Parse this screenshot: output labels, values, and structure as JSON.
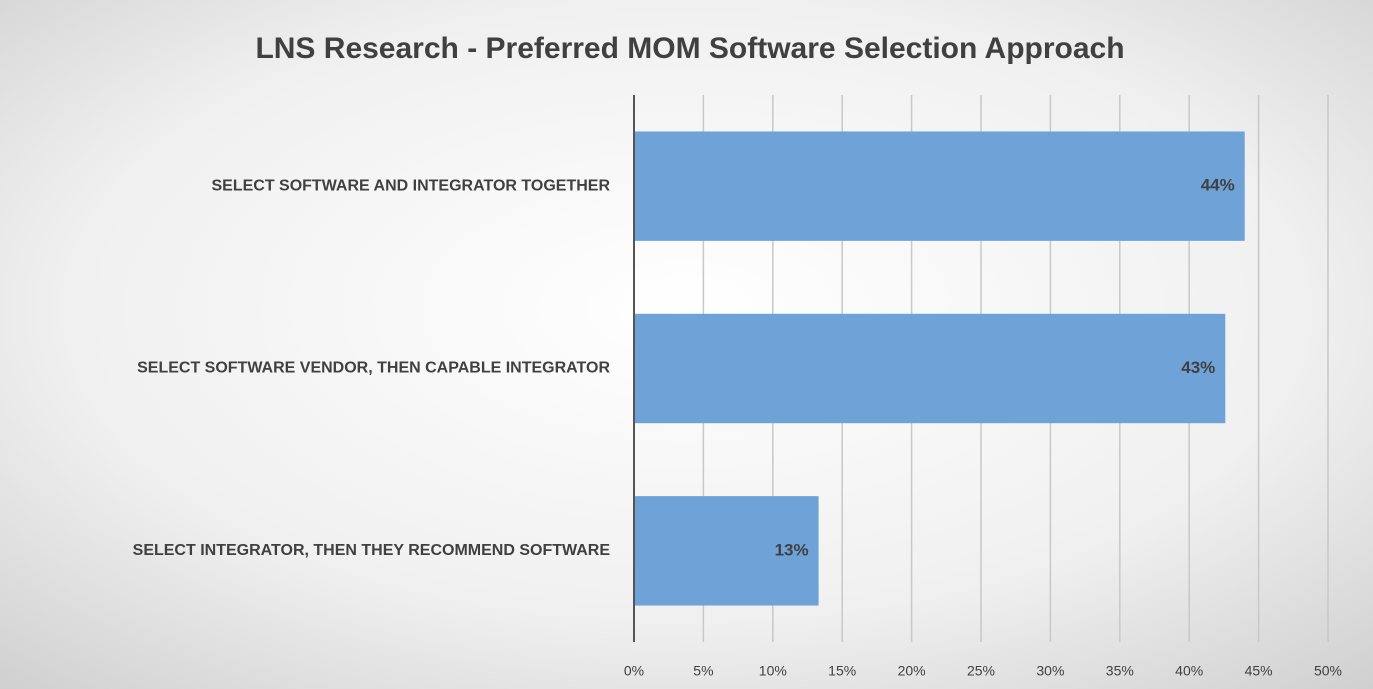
{
  "chart_data": {
    "type": "hbar",
    "title": "LNS Research - Preferred MOM Software Selection Approach",
    "categories": [
      "SELECT SOFTWARE AND INTEGRATOR TOGETHER",
      "SELECT SOFTWARE VENDOR, THEN CAPABLE INTEGRATOR",
      "SELECT INTEGRATOR, THEN THEY RECOMMEND SOFTWARE"
    ],
    "values": [
      44,
      42.6,
      13.3
    ],
    "value_labels": [
      "44%",
      "43%",
      "13%"
    ],
    "color": "#6fa3d8",
    "xlim": [
      0,
      50
    ],
    "xticks": [
      {
        "value": 0,
        "label": "0%"
      },
      {
        "value": 5,
        "label": "5%"
      },
      {
        "value": 10,
        "label": "10%"
      },
      {
        "value": 15,
        "label": "15%"
      },
      {
        "value": 20,
        "label": "20%"
      },
      {
        "value": 25,
        "label": "25%"
      },
      {
        "value": 30,
        "label": "30%"
      },
      {
        "value": 35,
        "label": "35%"
      },
      {
        "value": 40,
        "label": "40%"
      },
      {
        "value": 45,
        "label": "45%"
      },
      {
        "value": 50,
        "label": "50%"
      }
    ],
    "grid": true
  }
}
